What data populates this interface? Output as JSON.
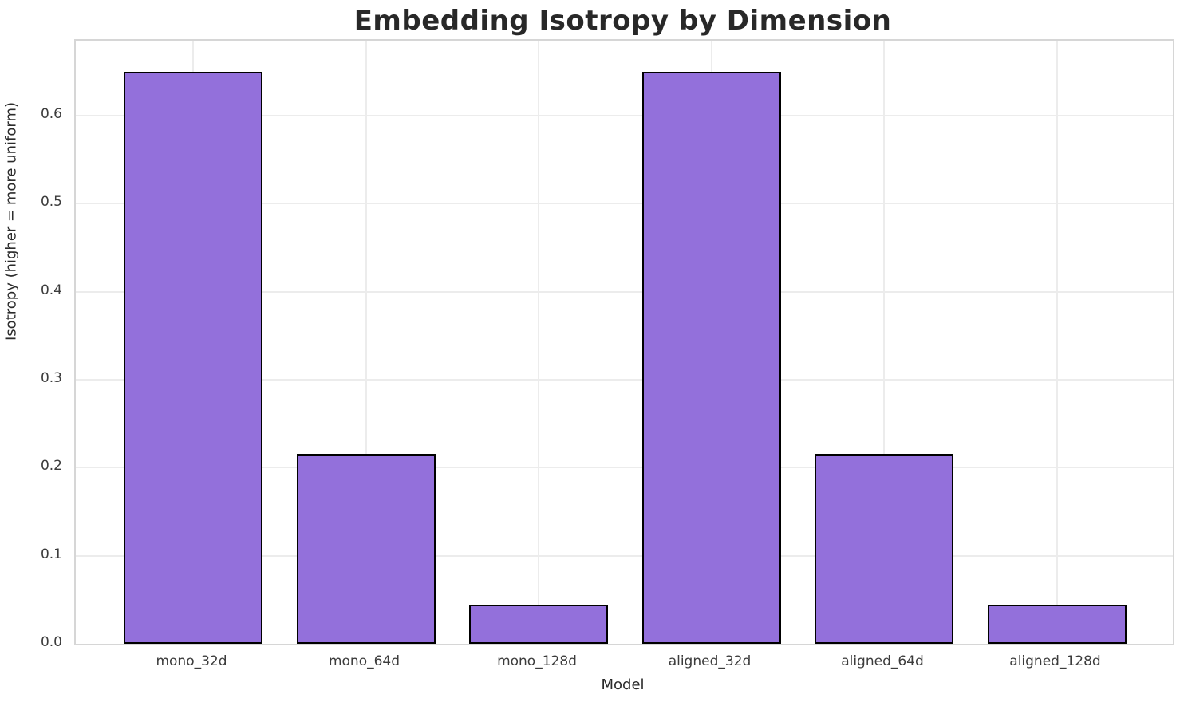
{
  "page": {
    "title": "Embedding Isotropy by Dimension"
  },
  "chart_data": {
    "type": "bar",
    "title": "Embedding Isotropy by Dimension",
    "xlabel": "Model",
    "ylabel": "Isotropy (higher = more uniform)",
    "categories": [
      "mono_32d",
      "mono_64d",
      "mono_128d",
      "aligned_32d",
      "aligned_64d",
      "aligned_128d"
    ],
    "values": [
      0.65,
      0.216,
      0.044,
      0.65,
      0.216,
      0.044
    ],
    "ylim": [
      0,
      0.685
    ],
    "yticks": [
      0,
      0.1,
      0.2,
      0.3,
      0.4,
      0.5,
      0.6
    ],
    "ytick_labels": [
      "0.0",
      "0.1",
      "0.2",
      "0.3",
      "0.4",
      "0.5",
      "0.6"
    ],
    "grid": true,
    "legend": false,
    "bar_color": "#9370db",
    "bar_edge_color": "#000000"
  }
}
